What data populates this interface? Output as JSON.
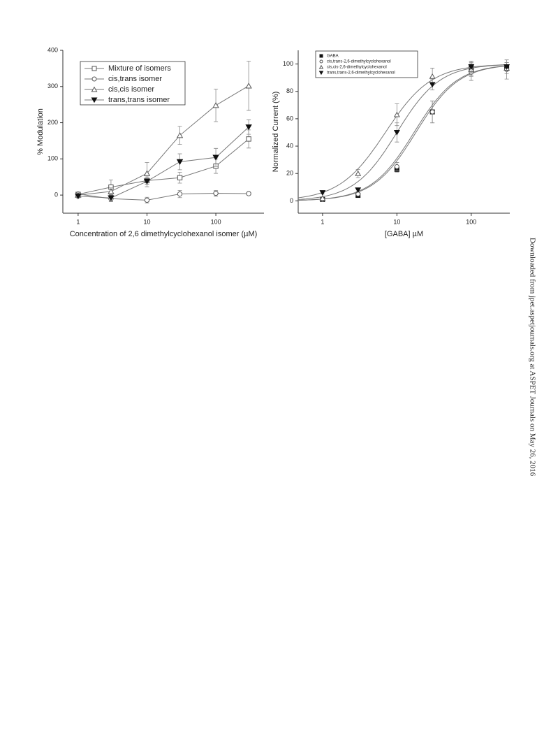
{
  "chart_data": [
    {
      "type": "line",
      "xscale": "log",
      "y_label": "% Modulation",
      "x_label": "Concentration of 2,6 dimethylcyclohexanol isomer (µM)",
      "xlim": [
        0.6,
        500
      ],
      "ylim": [
        -50,
        400
      ],
      "xticks": [
        1,
        10,
        100
      ],
      "yticks": [
        0,
        100,
        200,
        300,
        400
      ],
      "legend": "top-left",
      "x": [
        1,
        3,
        10,
        30,
        100,
        300
      ],
      "series": [
        {
          "name": "Mixture of isomers",
          "color": "#555555",
          "marker": "square-open",
          "values": [
            2,
            22,
            40,
            48,
            80,
            155
          ],
          "errors": [
            5,
            20,
            10,
            15,
            20,
            25
          ]
        },
        {
          "name": "cis,trans isomer",
          "color": "#555555",
          "marker": "circle-open",
          "values": [
            3,
            -10,
            -14,
            3,
            5,
            4
          ],
          "errors": [
            5,
            8,
            8,
            10,
            8,
            4
          ]
        },
        {
          "name": "cis,cis isomer",
          "color": "#555555",
          "marker": "triangle-open",
          "values": [
            0,
            10,
            60,
            165,
            248,
            302
          ],
          "errors": [
            5,
            10,
            30,
            25,
            45,
            68
          ]
        },
        {
          "name": "trans,trans isomer",
          "color": "#111111",
          "marker": "triangle-down-filled",
          "values": [
            -3,
            -8,
            38,
            92,
            104,
            188
          ],
          "errors": [
            5,
            8,
            15,
            22,
            25,
            20
          ]
        }
      ]
    },
    {
      "type": "scatter",
      "xscale": "log",
      "y_label": "Normalized Current (%)",
      "x_label": "[GABA] µM",
      "xlim": [
        0.47,
        330
      ],
      "ylim": [
        -9,
        110
      ],
      "xticks": [
        1,
        10,
        100
      ],
      "yticks": [
        0,
        20,
        40,
        60,
        80,
        100
      ],
      "legend": "top-left",
      "fit": "hill",
      "x": [
        1,
        3,
        10,
        30,
        100,
        300
      ],
      "series": [
        {
          "name": "GABA",
          "color": "#111111",
          "marker": "square-filled",
          "values": [
            1,
            4,
            23,
            65,
            97,
            98
          ],
          "errors": [
            1,
            1,
            2,
            8,
            5,
            3
          ],
          "ec50": 18,
          "hill": 1.5
        },
        {
          "name": "cis,trans-2,6-dimethylcyclohexanol",
          "color": "#555555",
          "marker": "circle-open",
          "values": [
            1,
            5,
            25,
            65,
            94,
            96
          ],
          "errors": [
            1,
            1,
            3,
            8,
            6,
            7
          ],
          "ec50": 17,
          "hill": 1.5
        },
        {
          "name": "cis,cis-2,6-dimethylcyclohexanol",
          "color": "#555555",
          "marker": "triangle-open",
          "values": [
            2,
            20,
            63,
            91,
            96,
            97
          ],
          "errors": [
            1,
            3,
            8,
            6,
            5,
            4
          ],
          "ec50": 7,
          "hill": 1.4
        },
        {
          "name": "trans,trans-2,6-dimethylcyclohexanol",
          "color": "#111111",
          "marker": "triangle-down-filled",
          "values": [
            6,
            8,
            50,
            85,
            98,
            98
          ],
          "errors": [
            1,
            1,
            7,
            4,
            4,
            3
          ],
          "ec50": 10,
          "hill": 1.5
        }
      ]
    }
  ],
  "side_note": "Downloaded from jpet.aspetjournals.org at ASPET Journals on May 26, 2016"
}
